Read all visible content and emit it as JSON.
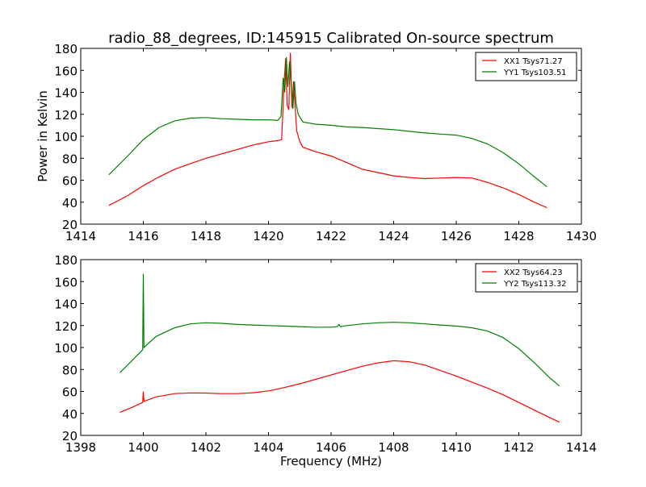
{
  "chart_data": [
    {
      "type": "line",
      "title": "radio_88_degrees, ID:145915 Calibrated On-source spectrum",
      "xlabel": "",
      "ylabel": "Power in Kelvin",
      "xlim": [
        1414,
        1430
      ],
      "ylim": [
        20,
        180
      ],
      "xticks": [
        1414,
        1416,
        1418,
        1420,
        1422,
        1424,
        1426,
        1428,
        1430
      ],
      "yticks": [
        20,
        40,
        60,
        80,
        100,
        120,
        140,
        160,
        180
      ],
      "legend_position": "top-right",
      "grid": false,
      "series": [
        {
          "name": "XX1 Tsys71.27",
          "color": "#ff0000",
          "x": [
            1414.9,
            1415.5,
            1416,
            1416.5,
            1417,
            1417.5,
            1418,
            1418.5,
            1419,
            1419.5,
            1420,
            1420.3,
            1420.42,
            1420.5,
            1420.55,
            1420.6,
            1420.65,
            1420.7,
            1420.75,
            1420.8,
            1420.85,
            1420.9,
            1421,
            1421.1,
            1421.5,
            1422,
            1422.5,
            1423,
            1423.5,
            1424,
            1424.5,
            1425,
            1425.5,
            1426,
            1426.5,
            1427,
            1427.5,
            1428,
            1428.5,
            1428.9
          ],
          "y": [
            37,
            46,
            55,
            63,
            70,
            75,
            80,
            84,
            88,
            92,
            95,
            96,
            97,
            150,
            171,
            128,
            124,
            176,
            126,
            150,
            128,
            105,
            95,
            90,
            86,
            82,
            76,
            70,
            67,
            64,
            62.5,
            61.5,
            62,
            62.5,
            62,
            58,
            53,
            47,
            40,
            35
          ]
        },
        {
          "name": "YY1 Tsys103.51",
          "color": "#008000",
          "x": [
            1414.9,
            1415.5,
            1416,
            1416.5,
            1417,
            1417.5,
            1418,
            1418.5,
            1419,
            1419.5,
            1420,
            1420.3,
            1420.4,
            1420.47,
            1420.52,
            1420.57,
            1420.62,
            1420.67,
            1420.72,
            1420.78,
            1420.83,
            1420.88,
            1420.95,
            1421.1,
            1421.5,
            1422,
            1422.5,
            1423,
            1423.5,
            1424,
            1424.5,
            1425,
            1425.5,
            1426,
            1426.5,
            1427,
            1427.5,
            1428,
            1428.5,
            1428.9
          ],
          "y": [
            65,
            82,
            97,
            108,
            114,
            116.5,
            117,
            116,
            115.5,
            115,
            115,
            114.5,
            118,
            153,
            140,
            172,
            145,
            168,
            150,
            125,
            150,
            130,
            120,
            113,
            111,
            110,
            108.5,
            108,
            107,
            106,
            104.5,
            103,
            102,
            101,
            98,
            93,
            85,
            75,
            63,
            54
          ]
        }
      ]
    },
    {
      "type": "line",
      "title": "",
      "xlabel": "Frequency (MHz)",
      "ylabel": "",
      "xlim": [
        1398,
        1414
      ],
      "ylim": [
        20,
        180
      ],
      "xticks": [
        1398,
        1400,
        1402,
        1404,
        1406,
        1408,
        1410,
        1412,
        1414
      ],
      "yticks": [
        20,
        40,
        60,
        80,
        100,
        120,
        140,
        160,
        180
      ],
      "legend_position": "top-right",
      "grid": false,
      "series": [
        {
          "name": "XX2 Tsys64.23",
          "color": "#ff0000",
          "x": [
            1399.25,
            1399.6,
            1399.98,
            1400,
            1400.02,
            1400.4,
            1401,
            1401.5,
            1402,
            1402.5,
            1403,
            1403.5,
            1404,
            1404.5,
            1405,
            1405.5,
            1406,
            1406.5,
            1407,
            1407.5,
            1408,
            1408.5,
            1409,
            1409.5,
            1410,
            1410.5,
            1411,
            1411.5,
            1412,
            1412.5,
            1413,
            1413.3
          ],
          "y": [
            41,
            45,
            50,
            60,
            51,
            55,
            58,
            58.7,
            58.5,
            58,
            58,
            58.8,
            60.5,
            63.5,
            67,
            71,
            75,
            79,
            83,
            86,
            88,
            87,
            84,
            79,
            74,
            68.5,
            63,
            57,
            50,
            43,
            36,
            32
          ]
        },
        {
          "name": "YY2 Tsys113.32",
          "color": "#008000",
          "x": [
            1399.25,
            1399.6,
            1399.98,
            1400,
            1400.02,
            1400.4,
            1401,
            1401.5,
            1402,
            1402.5,
            1403,
            1403.5,
            1404,
            1404.5,
            1405,
            1405.5,
            1406,
            1406.2,
            1406.25,
            1406.3,
            1406.5,
            1407,
            1407.5,
            1408,
            1408.5,
            1409,
            1409.5,
            1410,
            1410.5,
            1411,
            1411.5,
            1412,
            1412.5,
            1413,
            1413.3
          ],
          "y": [
            77,
            87,
            98,
            167,
            100,
            110,
            118,
            121.5,
            122.5,
            122,
            121,
            120.5,
            120,
            119.5,
            119,
            118.5,
            118.5,
            119,
            121,
            119,
            120,
            121.5,
            122.5,
            123,
            122.5,
            121.5,
            120.5,
            119.5,
            118,
            115,
            109,
            99,
            86,
            72,
            65
          ]
        }
      ]
    }
  ]
}
